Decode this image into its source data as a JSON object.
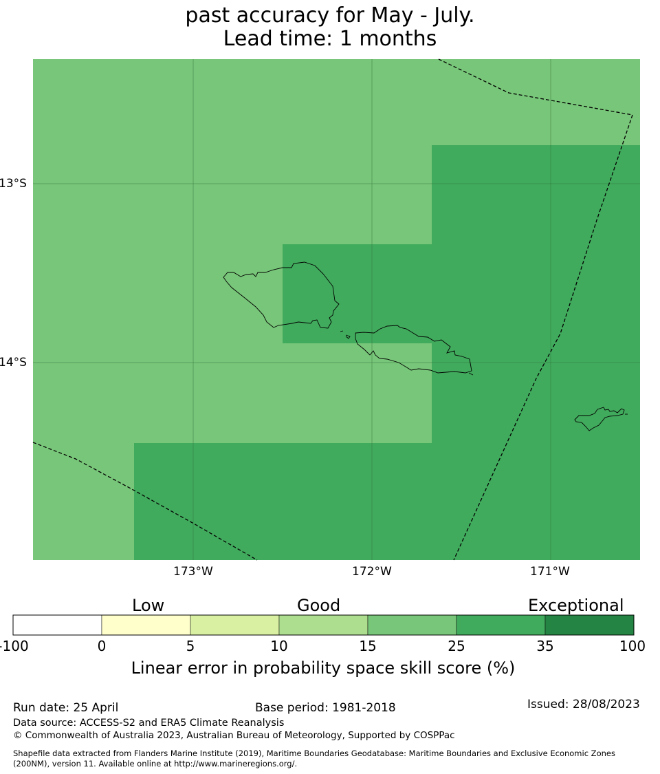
{
  "title": {
    "line1": "past accuracy for May - July.",
    "line2": "Lead time: 1 months"
  },
  "map": {
    "lat_labels": [
      "13°S",
      "14°S"
    ],
    "lon_labels": [
      "173°W",
      "172°W",
      "171°W"
    ],
    "colors": {
      "band_15_25": "#78c679",
      "band_25_35": "#41ab5d",
      "coast": "#000000",
      "eez_boundary": "#000000",
      "grid": "#2d6b36"
    },
    "skill_cells": [
      {
        "region": "north and west background",
        "category": "15-25"
      },
      {
        "region": "east block",
        "category": "25-35"
      },
      {
        "region": "central block over Savai'i east",
        "category": "25-35"
      },
      {
        "region": "southern block",
        "category": "25-35"
      }
    ]
  },
  "colorbar": {
    "categories": [
      "Low",
      "Good",
      "Exceptional"
    ],
    "ticks": [
      "-100",
      "0",
      "5",
      "10",
      "15",
      "25",
      "35",
      "100"
    ],
    "colors": [
      "#ffffff",
      "#ffffcc",
      "#d9f0a3",
      "#addd8e",
      "#78c679",
      "#41ab5d",
      "#238443"
    ],
    "label": "Linear error in probability space skill score (%)"
  },
  "footer": {
    "run_date": "Run date: 25 April",
    "base_period": "Base period: 1981-2018",
    "issued": "Issued: 28/08/2023",
    "data_source": "Data source: ACCESS-S2 and ERA5 Climate Reanalysis",
    "copyright": "© Commonwealth of Australia 2023, Australian Bureau of Meteorology, Supported by COSPPac",
    "shapefile_line1": "Shapefile data extracted from Flanders Marine Institute (2019), Maritime Boundaries Geodatabase: Maritime Boundaries and Exclusive Economic Zones",
    "shapefile_line2": "(200NM), version 11. Available online at http://www.marineregions.org/."
  }
}
